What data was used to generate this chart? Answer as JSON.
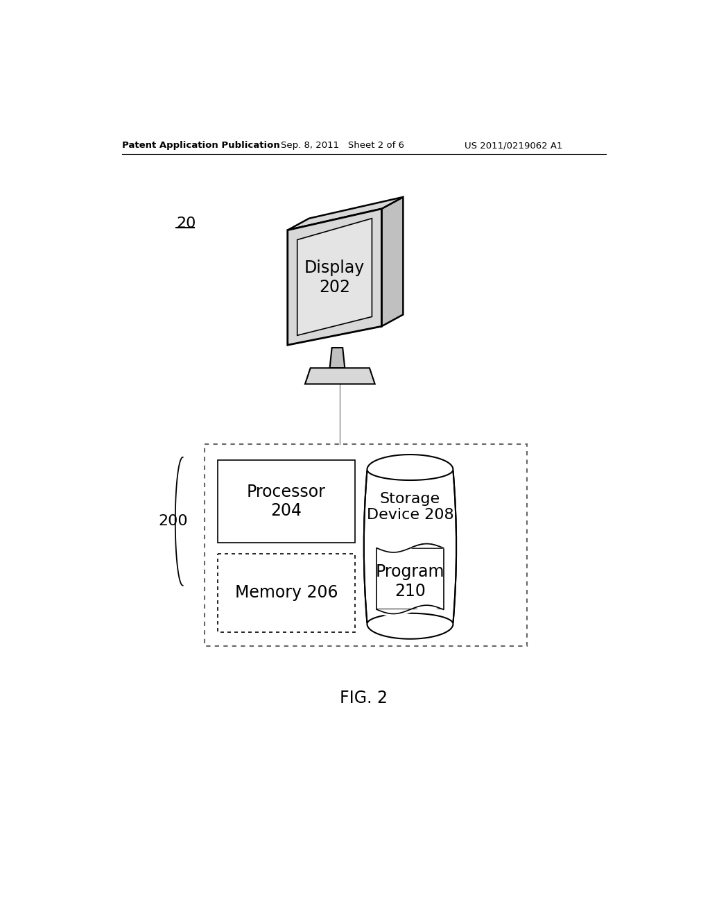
{
  "bg_color": "#ffffff",
  "header_left": "Patent Application Publication",
  "header_mid": "Sep. 8, 2011   Sheet 2 of 6",
  "header_right": "US 2011/0219062 A1",
  "fig_label": "FIG. 2",
  "label_20": "20",
  "label_200": "200",
  "display_text": "Display\n202",
  "processor_text": "Processor\n204",
  "memory_text": "Memory 206",
  "storage_text": "Storage\nDevice 208",
  "program_text": "Program\n210",
  "gray_light": "#d8d8d8",
  "gray_mid": "#c0c0c0",
  "gray_dark": "#a0a0a0",
  "line_color": "#000000",
  "dot_line_color": "#555555"
}
